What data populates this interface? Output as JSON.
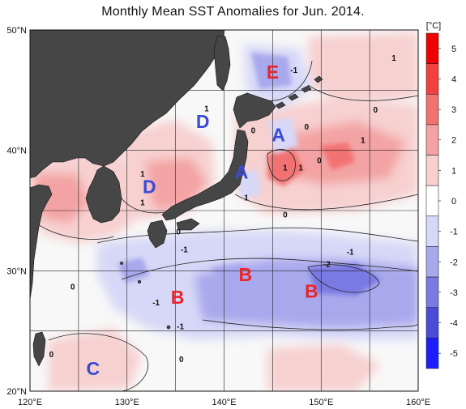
{
  "title": "Monthly Mean SST Anomalies for Jun. 2014.",
  "map": {
    "lon_range": [
      120,
      160
    ],
    "lat_range": [
      20,
      50
    ],
    "lon_ticks": [
      {
        "value": 120,
        "label": "120°E"
      },
      {
        "value": 130,
        "label": "130°E"
      },
      {
        "value": 140,
        "label": "140°E"
      },
      {
        "value": 150,
        "label": "150°E"
      },
      {
        "value": 160,
        "label": "160°E"
      }
    ],
    "lat_ticks": [
      {
        "value": 50,
        "label": "50°N"
      },
      {
        "value": 40,
        "label": "40°N"
      },
      {
        "value": 30,
        "label": "30°N"
      },
      {
        "value": 20,
        "label": "20°N"
      }
    ],
    "grid_lons": [
      125,
      130,
      135,
      140,
      145,
      150,
      155
    ],
    "grid_lats": [
      25,
      30,
      35,
      40,
      45
    ],
    "land_color": "#464646",
    "ocean_base": "#f8f8f8"
  },
  "colorbar": {
    "unit": "[°C]",
    "labels": [
      "5",
      "4",
      "3",
      "2",
      "1",
      "0",
      "-1",
      "-2",
      "-3",
      "-4",
      "-5"
    ],
    "colors": [
      "#f00000",
      "#f24040",
      "#f27272",
      "#f3a3a3",
      "#f7d0d0",
      "#ffffff",
      "#d7d8f7",
      "#a8a8ed",
      "#7a7ae3",
      "#4b4bd9",
      "#1e1efd"
    ]
  },
  "region_labels": [
    {
      "text": "E",
      "lon": 145.0,
      "lat": 46.5,
      "color": "#e8262a"
    },
    {
      "text": "A",
      "lon": 145.6,
      "lat": 41.3,
      "color": "#3a4ad8"
    },
    {
      "text": "A",
      "lon": 141.8,
      "lat": 38.2,
      "color": "#3a4ad8"
    },
    {
      "text": "D",
      "lon": 137.8,
      "lat": 42.4,
      "color": "#3a4ad8"
    },
    {
      "text": "D",
      "lon": 132.3,
      "lat": 37.0,
      "color": "#3a4ad8"
    },
    {
      "text": "B",
      "lon": 142.2,
      "lat": 29.7,
      "color": "#e8262a"
    },
    {
      "text": "B",
      "lon": 149.0,
      "lat": 28.3,
      "color": "#e8262a"
    },
    {
      "text": "B",
      "lon": 135.2,
      "lat": 27.8,
      "color": "#e8262a"
    },
    {
      "text": "C",
      "lon": 126.5,
      "lat": 21.9,
      "color": "#3a4ad8"
    }
  ],
  "contour_labels": [
    {
      "text": "-1",
      "lon": 147.2,
      "lat": 46.7
    },
    {
      "text": "1",
      "lon": 157.5,
      "lat": 47.7
    },
    {
      "text": "1",
      "lon": 138.2,
      "lat": 43.5
    },
    {
      "text": "0",
      "lon": 143.0,
      "lat": 41.7
    },
    {
      "text": "0",
      "lon": 148.5,
      "lat": 42.0
    },
    {
      "text": "0",
      "lon": 155.6,
      "lat": 43.4
    },
    {
      "text": "1",
      "lon": 154.3,
      "lat": 40.9
    },
    {
      "text": "1",
      "lon": 146.3,
      "lat": 38.6
    },
    {
      "text": "1",
      "lon": 147.9,
      "lat": 38.6
    },
    {
      "text": "0",
      "lon": 149.8,
      "lat": 39.2
    },
    {
      "text": "1",
      "lon": 131.6,
      "lat": 38.1
    },
    {
      "text": "1",
      "lon": 131.6,
      "lat": 35.7
    },
    {
      "text": "1",
      "lon": 142.3,
      "lat": 36.1
    },
    {
      "text": "0",
      "lon": 146.3,
      "lat": 34.7
    },
    {
      "text": "0",
      "lon": 135.3,
      "lat": 33.3
    },
    {
      "text": "-1",
      "lon": 135.9,
      "lat": 31.8
    },
    {
      "text": "-1",
      "lon": 153.0,
      "lat": 31.6
    },
    {
      "text": "-2",
      "lon": 150.6,
      "lat": 30.6
    },
    {
      "text": "0",
      "lon": 124.4,
      "lat": 28.7
    },
    {
      "text": "-1",
      "lon": 133.0,
      "lat": 27.4
    },
    {
      "text": "-1",
      "lon": 135.5,
      "lat": 25.4
    },
    {
      "text": "0",
      "lon": 135.6,
      "lat": 22.7
    },
    {
      "text": "0",
      "lon": 122.2,
      "lat": 23.1
    }
  ]
}
